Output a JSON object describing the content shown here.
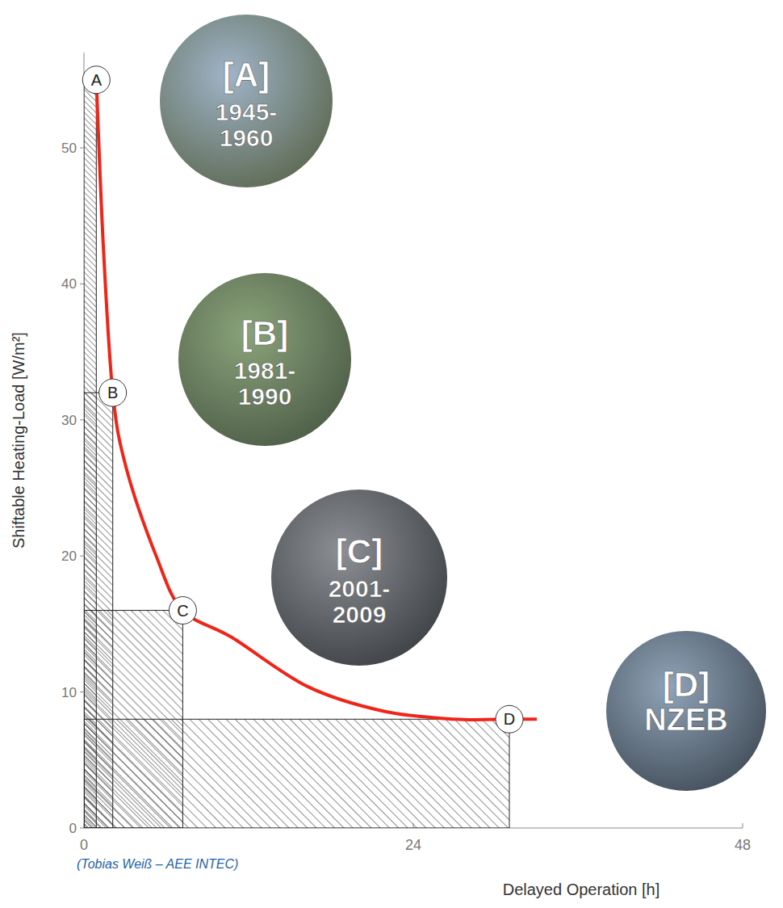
{
  "chart_data": {
    "type": "line",
    "color": "#f02418",
    "x": [
      0.9,
      1.4,
      2.1,
      3.1,
      5.3,
      7.2,
      10.8,
      16.3,
      21.8,
      27,
      31,
      33
    ],
    "values": [
      55,
      43,
      32,
      26.4,
      19.9,
      16,
      14,
      10.4,
      8.6,
      8,
      8,
      8
    ],
    "xlabel": "Delayed Operation [h]",
    "ylabel": "Shiftable Heating-Load [W/m²]",
    "xlim": [
      0,
      48
    ],
    "ylim": [
      0,
      57
    ],
    "xticks": [
      0,
      24,
      48
    ],
    "yticks": [
      0,
      10,
      20,
      30,
      40,
      50
    ],
    "grid": false,
    "points": [
      {
        "label": "A",
        "x": 0.9,
        "y": 55,
        "building": "[A]",
        "period": "1945-1960"
      },
      {
        "label": "B",
        "x": 2.1,
        "y": 32,
        "building": "[B]",
        "period": "1981-1990"
      },
      {
        "label": "C",
        "x": 7.2,
        "y": 16,
        "building": "[C]",
        "period": "2001-2009"
      },
      {
        "label": "D",
        "x": 31,
        "y": 8,
        "building": "[D]",
        "period": "NZEB"
      }
    ],
    "source": "(Tobias Weiß – AEE INTEC)"
  }
}
